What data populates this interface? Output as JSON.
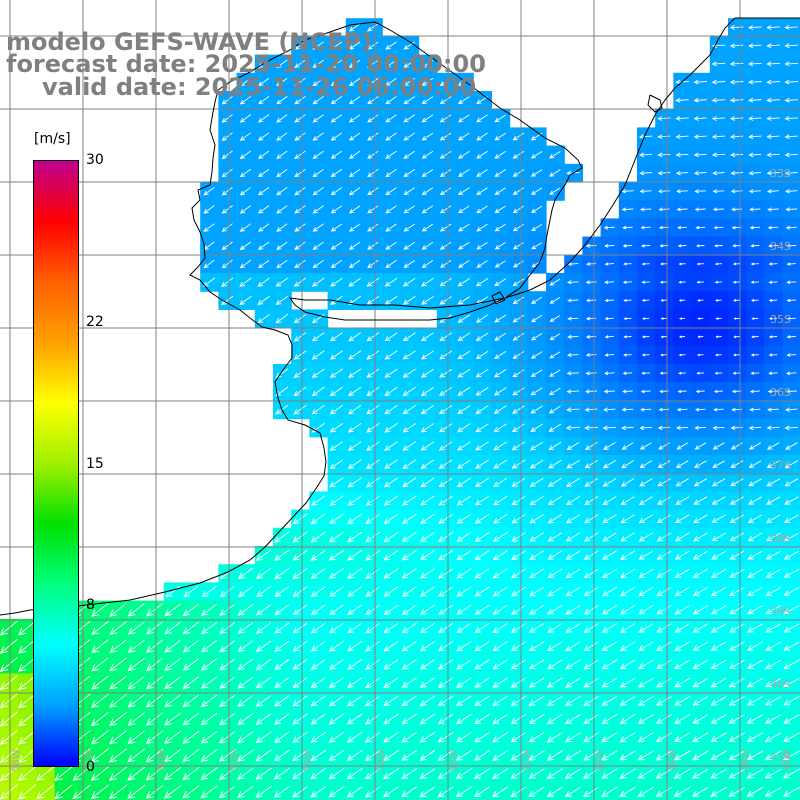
{
  "titles": {
    "model": "modelo GEFS-WAVE (NCEP)",
    "forecast": "forecast date: 2025-11-20 00:00:00",
    "valid": "valid date: 2025-11-26 06:00:00"
  },
  "colorbar": {
    "unit": "[m/s]",
    "min": 0,
    "max": 30,
    "ticks": [
      {
        "label": "30",
        "value": 30
      },
      {
        "label": "22",
        "value": 22
      },
      {
        "label": "15",
        "value": 15
      },
      {
        "label": "8",
        "value": 8
      },
      {
        "label": "0",
        "value": 0
      }
    ],
    "colors": [
      "#0000ff",
      "#00a0ff",
      "#00ffff",
      "#00ff80",
      "#00e000",
      "#a0f000",
      "#ffff00",
      "#ffa000",
      "#ff6000",
      "#ff0000",
      "#c00090"
    ]
  },
  "map": {
    "lon_range": [
      -59,
      -45
    ],
    "lat_range": [
      -41,
      -30
    ],
    "lat_labels": [
      "33S",
      "34S",
      "35S",
      "36S",
      "37S",
      "38S",
      "39S",
      "40S",
      "41S"
    ],
    "lon_labels": [
      "58W",
      "57W",
      "56W",
      "55W",
      "54W",
      "53W",
      "52W",
      "51W",
      "50W",
      "49W",
      "48W",
      "47W"
    ],
    "wind_direction": "from NE toward SW",
    "land_color": "#ffffff",
    "coast_color": "#000000",
    "grid_color": "#808080"
  }
}
